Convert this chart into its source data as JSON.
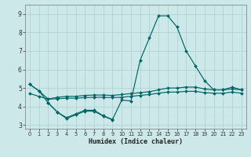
{
  "xlabel": "Humidex (Indice chaleur)",
  "bg_color": "#cce8e8",
  "grid_color": "#aacfcf",
  "line_color": "#006666",
  "xlim": [
    -0.5,
    23.5
  ],
  "ylim": [
    2.8,
    9.5
  ],
  "xticks": [
    0,
    1,
    2,
    3,
    4,
    5,
    6,
    7,
    8,
    9,
    10,
    11,
    12,
    13,
    14,
    15,
    16,
    17,
    18,
    19,
    20,
    21,
    22,
    23
  ],
  "yticks": [
    3,
    4,
    5,
    6,
    7,
    8,
    9
  ],
  "series_peak": [
    5.2,
    4.85,
    4.2,
    3.7,
    3.4,
    3.6,
    3.8,
    3.8,
    3.5,
    3.3,
    4.35,
    4.3,
    6.5,
    7.7,
    8.9,
    8.9,
    8.3,
    7.0,
    6.2,
    5.4,
    4.9,
    4.9,
    5.05,
    4.9
  ],
  "series_high": [
    5.2,
    4.85,
    4.4,
    4.5,
    4.55,
    4.55,
    4.6,
    4.62,
    4.62,
    4.6,
    4.65,
    4.7,
    4.75,
    4.8,
    4.9,
    5.0,
    5.0,
    5.05,
    5.05,
    4.95,
    4.9,
    4.9,
    4.95,
    4.9
  ],
  "series_mid": [
    4.7,
    4.55,
    4.4,
    4.42,
    4.45,
    4.45,
    4.48,
    4.5,
    4.5,
    4.48,
    4.5,
    4.55,
    4.6,
    4.65,
    4.72,
    4.78,
    4.78,
    4.82,
    4.82,
    4.75,
    4.72,
    4.72,
    4.78,
    4.72
  ],
  "series_low": [
    null,
    null,
    4.2,
    3.7,
    3.35,
    3.55,
    3.75,
    3.75,
    3.48,
    3.28,
    null,
    null,
    null,
    null,
    null,
    null,
    null,
    null,
    null,
    null,
    null,
    null,
    null,
    null
  ]
}
